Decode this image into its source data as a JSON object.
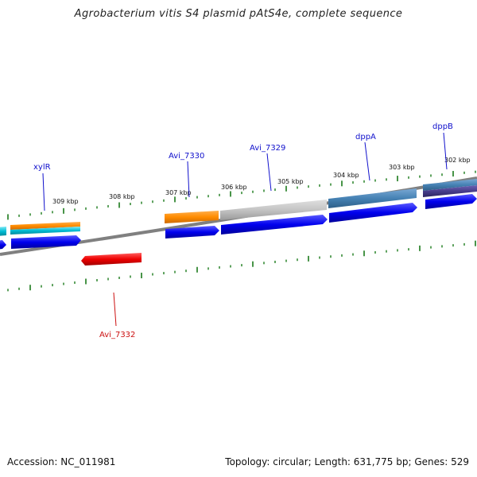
{
  "title": "Agrobacterium vitis S4 plasmid pAtS4e, complete sequence",
  "footer": {
    "accession": "Accession: NC_011981",
    "summary": "Topology: circular; Length: 631,775 bp; Genes: 529"
  },
  "scale_labels": [
    "309 kbp",
    "308 kbp",
    "307 kbp",
    "306 kbp",
    "305 kbp",
    "304 kbp",
    "303 kbp",
    "302 kbp"
  ],
  "gene_labels": [
    {
      "name": "xylR",
      "color": "#1010cc"
    },
    {
      "name": "Avi_7330",
      "color": "#1010cc"
    },
    {
      "name": "Avi_7329",
      "color": "#1010cc"
    },
    {
      "name": "dppA",
      "color": "#1010cc"
    },
    {
      "name": "dppB",
      "color": "#1010cc"
    },
    {
      "name": "Avi_7332",
      "color": "#cc1010"
    }
  ],
  "colors": {
    "backbone": "#808080",
    "ticks": "#1a7a1a",
    "cds": "#0000ee",
    "reverse_cds": "#ee0000",
    "orange_feature": "#ff8c00",
    "grey_feature": "#c0c0c0",
    "steel_feature": "#4682b4",
    "purple_feature": "#483d8b",
    "cyan_feature": "#00bcd4"
  }
}
